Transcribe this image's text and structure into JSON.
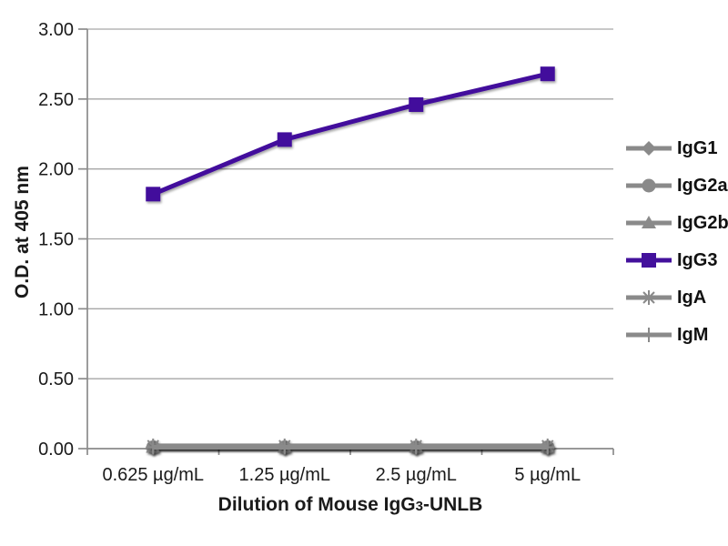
{
  "chart_data": {
    "type": "line",
    "title": "",
    "ylabel": "O.D. at 405 nm",
    "xlabel": {
      "prefix": "Dilution of Mouse IgG",
      "subscript": "3",
      "suffix": "-UNLB"
    },
    "categories": [
      "0.625 µg/mL",
      "1.25 µg/mL",
      "2.5 µg/mL",
      "5 µg/mL"
    ],
    "ylim": [
      0,
      3
    ],
    "ytick_step": 0.5,
    "ytick_labels": [
      "0.00",
      "0.50",
      "1.00",
      "1.50",
      "2.00",
      "2.50",
      "3.00"
    ],
    "grid": true,
    "legend_position": "right",
    "series": [
      {
        "name": "IgG1",
        "marker": "diamond",
        "color": "#8A8A8A",
        "values": [
          0.01,
          0.01,
          0.01,
          0.01
        ]
      },
      {
        "name": "IgG2a",
        "marker": "circle",
        "color": "#8A8A8A",
        "values": [
          0.01,
          0.01,
          0.01,
          0.01
        ]
      },
      {
        "name": "IgG2b",
        "marker": "triangle",
        "color": "#8A8A8A",
        "values": [
          0.01,
          0.01,
          0.01,
          0.01
        ]
      },
      {
        "name": "IgG3",
        "marker": "square",
        "color": "#43119C",
        "values": [
          1.82,
          2.21,
          2.46,
          2.68
        ]
      },
      {
        "name": "IgA",
        "marker": "asterisk",
        "color": "#8A8A8A",
        "values": [
          0.02,
          0.02,
          0.02,
          0.02
        ]
      },
      {
        "name": "IgM",
        "marker": "plus",
        "color": "#8A8A8A",
        "values": [
          0.01,
          0.01,
          0.01,
          0.01
        ]
      }
    ],
    "colors": {
      "grid": "#A6A6A6",
      "axis": "#8C8C8C",
      "text": "#1A1A1A",
      "background": "#FFFFFF"
    }
  }
}
